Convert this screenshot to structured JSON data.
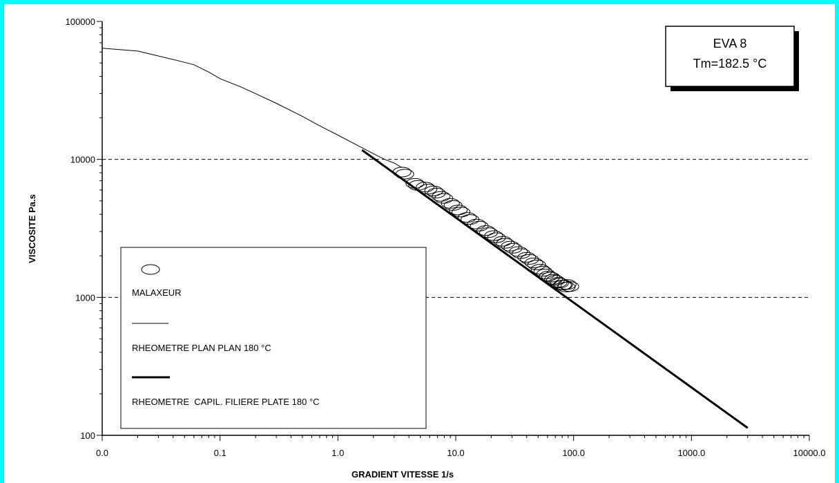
{
  "chart_data": {
    "type": "line",
    "xlabel": "GRADIENT VITESSE 1/s",
    "ylabel": "VISCOSITE Pa.s",
    "x_scale": "log",
    "y_scale": "log",
    "xlim": [
      0.01,
      10000
    ],
    "ylim": [
      100,
      100000
    ],
    "x_ticks": [
      {
        "value": 0.01,
        "label": "0.0"
      },
      {
        "value": 0.1,
        "label": "0.1"
      },
      {
        "value": 1,
        "label": "1.0"
      },
      {
        "value": 10,
        "label": "10.0"
      },
      {
        "value": 100,
        "label": "100.0"
      },
      {
        "value": 1000,
        "label": "1000.0"
      },
      {
        "value": 10000,
        "label": "10000.0"
      }
    ],
    "y_ticks": [
      {
        "value": 100,
        "label": "100"
      },
      {
        "value": 1000,
        "label": "1000"
      },
      {
        "value": 10000,
        "label": "10000"
      },
      {
        "value": 100000,
        "label": "100000"
      }
    ],
    "grid": "horizontal dashed at 1000 and 10000",
    "annotation": {
      "line1": "EVA 8",
      "line2": "Tm=182.5 °C"
    },
    "legend_position": "bottom-left",
    "series": [
      {
        "name": "MALAXEUR",
        "style": "ellipse-markers",
        "x": [
          3.5,
          4.5,
          5.5,
          6.5,
          7.5,
          9,
          10.5,
          12.5,
          15,
          18,
          21,
          25,
          29,
          34,
          40,
          46,
          52,
          58,
          64,
          70,
          76,
          82,
          88
        ],
        "y": [
          8100,
          6700,
          6300,
          5900,
          5400,
          4800,
          4300,
          3800,
          3400,
          3050,
          2800,
          2550,
          2350,
          2150,
          1950,
          1780,
          1600,
          1480,
          1400,
          1330,
          1270,
          1230,
          1240
        ]
      },
      {
        "name": "RHEOMETRE PLAN PLAN 180 °C",
        "style": "thin-line",
        "x": [
          0.01,
          0.02,
          0.04,
          0.06,
          0.08,
          0.1,
          0.15,
          0.2,
          0.3,
          0.5,
          0.7,
          1,
          1.5,
          2,
          2.5,
          3,
          3.5
        ],
        "y": [
          64000,
          61000,
          53000,
          48500,
          43000,
          38500,
          33500,
          30000,
          25500,
          20500,
          17500,
          15000,
          12500,
          11000,
          10000,
          9400,
          8700
        ]
      },
      {
        "name": "RHEOMETRE  CAPIL. FILIERE PLATE 180 °C",
        "style": "thick-line",
        "x": [
          1.6,
          3000
        ],
        "y": [
          11700,
          113
        ]
      }
    ]
  }
}
